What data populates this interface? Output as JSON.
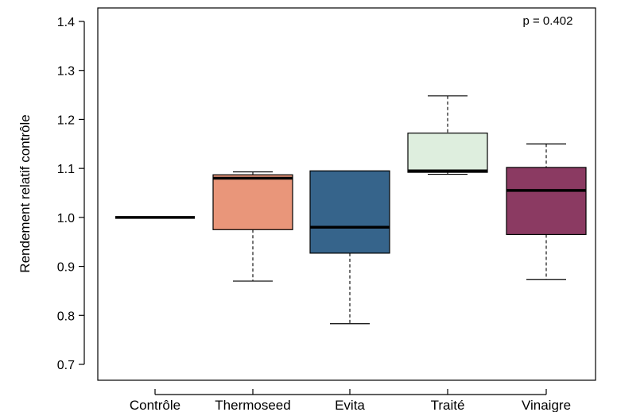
{
  "chart_data": {
    "type": "boxplot",
    "ylabel": "Rendement relatif contrôle",
    "xlabel": "",
    "ylim": [
      0.67,
      1.43
    ],
    "yticks": [
      0.7,
      0.8,
      0.9,
      1.0,
      1.1,
      1.2,
      1.3,
      1.4
    ],
    "ytick_labels": [
      "0.7",
      "0.8",
      "0.9",
      "1.0",
      "1.1",
      "1.2",
      "1.3",
      "1.4"
    ],
    "annotation": "p = 0.402",
    "categories": [
      "Contrôle",
      "Thermoseed",
      "Evita",
      "Traité",
      "Vinaigre"
    ],
    "boxes": [
      {
        "label": "Contrôle",
        "min": 1.0,
        "q1": 1.0,
        "median": 1.0,
        "q3": 1.0,
        "max": 1.0,
        "color": "#ffffff"
      },
      {
        "label": "Thermoseed",
        "min": 0.87,
        "q1": 0.975,
        "median": 1.08,
        "q3": 1.087,
        "max": 1.093,
        "color": "#e9967a"
      },
      {
        "label": "Evita",
        "min": 0.783,
        "q1": 0.927,
        "median": 0.98,
        "q3": 1.095,
        "max": 1.095,
        "color": "#36648b"
      },
      {
        "label": "Traité",
        "min": 1.088,
        "q1": 1.092,
        "median": 1.095,
        "q3": 1.172,
        "max": 1.248,
        "color": "#deeede"
      },
      {
        "label": "Vinaigre",
        "min": 0.873,
        "q1": 0.965,
        "median": 1.055,
        "q3": 1.102,
        "max": 1.15,
        "color": "#8b3a62"
      }
    ]
  }
}
